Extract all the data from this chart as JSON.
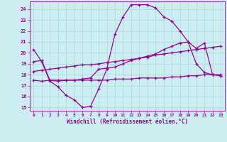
{
  "title": "",
  "xlabel": "Windchill (Refroidissement éolien,°C)",
  "ylabel": "",
  "background_color": "#cceef0",
  "grid_color": "#aadddd",
  "line_color": "#990099",
  "xlim": [
    -0.5,
    23.5
  ],
  "ylim": [
    14.7,
    24.7
  ],
  "yticks": [
    15,
    16,
    17,
    18,
    19,
    20,
    21,
    22,
    23,
    24
  ],
  "xticks": [
    0,
    1,
    2,
    3,
    4,
    5,
    6,
    7,
    8,
    9,
    10,
    11,
    12,
    13,
    14,
    15,
    16,
    17,
    18,
    19,
    20,
    21,
    22,
    23
  ],
  "line1_x": [
    0,
    1,
    2,
    3,
    4,
    5,
    6,
    7,
    8,
    9,
    10,
    11,
    12,
    13,
    14,
    15,
    16,
    17,
    18,
    19,
    20,
    21,
    22,
    23
  ],
  "line1_y": [
    20.3,
    19.2,
    17.4,
    16.9,
    16.1,
    15.7,
    15.0,
    15.1,
    16.7,
    18.5,
    21.7,
    23.3,
    24.4,
    24.4,
    24.4,
    24.1,
    23.3,
    22.9,
    22.0,
    21.0,
    19.0,
    18.2,
    18.0,
    17.9
  ],
  "line2_x": [
    0,
    1,
    2,
    3,
    4,
    5,
    6,
    7,
    8,
    9,
    10,
    11,
    12,
    13,
    14,
    15,
    16,
    17,
    18,
    19,
    20,
    21,
    22,
    23
  ],
  "line2_y": [
    19.2,
    19.3,
    17.5,
    17.4,
    17.5,
    17.5,
    17.6,
    17.7,
    18.5,
    18.6,
    18.7,
    19.0,
    19.3,
    19.5,
    19.7,
    19.9,
    20.3,
    20.6,
    20.9,
    21.0,
    20.4,
    20.9,
    18.0,
    17.9
  ],
  "line3_x": [
    0,
    1,
    2,
    3,
    4,
    5,
    6,
    7,
    8,
    9,
    10,
    11,
    12,
    13,
    14,
    15,
    16,
    17,
    18,
    19,
    20,
    21,
    22,
    23
  ],
  "line3_y": [
    17.5,
    17.4,
    17.5,
    17.5,
    17.5,
    17.5,
    17.5,
    17.5,
    17.5,
    17.5,
    17.6,
    17.6,
    17.6,
    17.7,
    17.7,
    17.7,
    17.7,
    17.8,
    17.8,
    17.9,
    17.9,
    18.0,
    18.0,
    18.0
  ],
  "line4_x": [
    0,
    1,
    2,
    3,
    4,
    5,
    6,
    7,
    8,
    9,
    10,
    11,
    12,
    13,
    14,
    15,
    16,
    17,
    18,
    19,
    20,
    21,
    22,
    23
  ],
  "line4_y": [
    18.3,
    18.4,
    18.5,
    18.6,
    18.7,
    18.8,
    18.9,
    18.9,
    19.0,
    19.1,
    19.2,
    19.3,
    19.4,
    19.5,
    19.6,
    19.8,
    19.9,
    20.0,
    20.1,
    20.2,
    20.3,
    20.4,
    20.5,
    20.6
  ]
}
